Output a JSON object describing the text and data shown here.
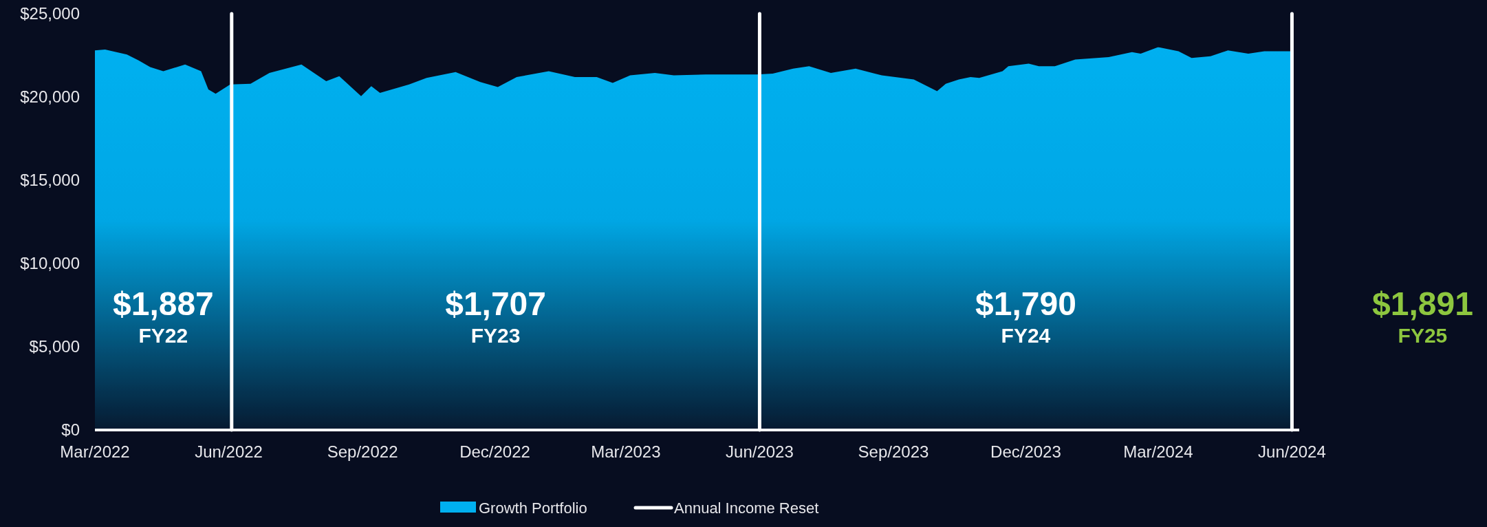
{
  "chart_data": {
    "type": "area",
    "x": [
      "2022-03-01",
      "2022-03-08",
      "2022-03-23",
      "2022-03-31",
      "2022-04-08",
      "2022-04-17",
      "2022-05-02",
      "2022-05-13",
      "2022-05-18",
      "2022-05-23",
      "2022-06-02",
      "2022-06-16",
      "2022-06-29",
      "2022-07-21",
      "2022-08-07",
      "2022-08-16",
      "2022-08-31",
      "2022-09-07",
      "2022-09-13",
      "2022-10-03",
      "2022-10-15",
      "2022-11-04",
      "2022-11-21",
      "2022-12-03",
      "2022-12-16",
      "2023-01-07",
      "2023-01-25",
      "2023-02-09",
      "2023-02-20",
      "2023-03-04",
      "2023-03-21",
      "2023-04-03",
      "2023-04-25",
      "2023-05-19",
      "2023-05-30",
      "2023-06-10",
      "2023-06-24",
      "2023-07-05",
      "2023-07-20",
      "2023-08-06",
      "2023-08-24",
      "2023-09-15",
      "2023-10-01",
      "2023-10-07",
      "2023-10-16",
      "2023-10-24",
      "2023-10-30",
      "2023-11-15",
      "2023-11-19",
      "2023-12-03",
      "2023-12-10",
      "2023-12-21",
      "2024-01-04",
      "2024-01-27",
      "2024-02-12",
      "2024-02-18",
      "2024-03-01",
      "2024-03-15",
      "2024-03-24",
      "2024-04-06",
      "2024-04-18",
      "2024-05-02",
      "2024-05-13",
      "2024-05-31"
    ],
    "series": [
      {
        "name": "Growth Portfolio",
        "color": "#00b0f0",
        "values": [
          22800,
          22850,
          22550,
          22200,
          21800,
          21550,
          21950,
          21550,
          20450,
          20200,
          20750,
          20800,
          21450,
          21950,
          20950,
          21250,
          20050,
          20650,
          20250,
          20750,
          21150,
          21500,
          20900,
          20600,
          21200,
          21550,
          21200,
          21200,
          20850,
          21300,
          21450,
          21300,
          21350,
          21350,
          21350,
          21400,
          21700,
          21850,
          21450,
          21700,
          21300,
          21050,
          20350,
          20800,
          21050,
          21200,
          21150,
          21550,
          21850,
          22000,
          21850,
          21850,
          22250,
          22400,
          22700,
          22600,
          23000,
          22750,
          22350,
          22450,
          22800,
          22600,
          22750,
          22750
        ]
      }
    ],
    "xlim": [
      "2022-03-01",
      "2024-06-06"
    ],
    "xticks": [
      {
        "value": "2022-03-01",
        "label": "Mar/2022"
      },
      {
        "value": "2022-06-01",
        "label": "Jun/2022"
      },
      {
        "value": "2022-09-01",
        "label": "Sep/2022"
      },
      {
        "value": "2022-12-01",
        "label": "Dec/2022"
      },
      {
        "value": "2023-03-01",
        "label": "Mar/2023"
      },
      {
        "value": "2023-06-01",
        "label": "Jun/2023"
      },
      {
        "value": "2023-09-01",
        "label": "Sep/2023"
      },
      {
        "value": "2023-12-01",
        "label": "Dec/2023"
      },
      {
        "value": "2024-03-01",
        "label": "Mar/2024"
      },
      {
        "value": "2024-06-01",
        "label": "Jun/2024"
      }
    ],
    "ylim": [
      0,
      25000
    ],
    "yticks": [
      {
        "value": 0,
        "label": "$0"
      },
      {
        "value": 5000,
        "label": "$5,000"
      },
      {
        "value": 10000,
        "label": "$10,000"
      },
      {
        "value": 15000,
        "label": "$15,000"
      },
      {
        "value": 20000,
        "label": "$20,000"
      },
      {
        "value": 25000,
        "label": "$25,000"
      }
    ],
    "ref_lines": [
      {
        "axis": "x",
        "value": "2022-06-03",
        "label": "Annual Income Reset",
        "color": "#ffffff"
      },
      {
        "axis": "x",
        "value": "2023-06-01",
        "color": "#ffffff"
      },
      {
        "axis": "x",
        "value": "2024-06-01",
        "color": "#ffffff"
      }
    ],
    "annotations": [
      "$1,887",
      "FY22",
      "$1,707",
      "FY23",
      "$1,790",
      "FY24",
      "$1,891",
      "FY25"
    ],
    "grid": false,
    "legend": "bottom"
  }
}
